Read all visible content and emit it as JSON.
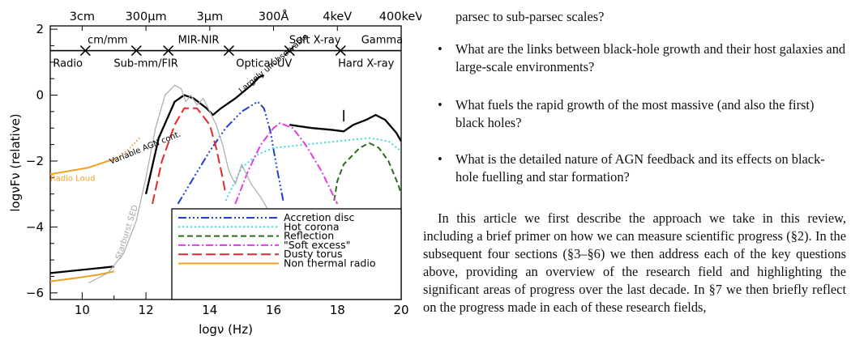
{
  "figure": {
    "chart_data": {
      "type": "line",
      "xlabel": "logν (Hz)",
      "ylabel": "logνFν (relative)",
      "xlim": [
        9,
        20
      ],
      "ylim": [
        -6.2,
        2.1
      ],
      "x_ticks": [
        10,
        12,
        14,
        16,
        18,
        20
      ],
      "y_ticks": [
        2,
        0,
        -2,
        -4,
        -6
      ],
      "top_axis_labels": [
        {
          "label": "3cm",
          "x": 10
        },
        {
          "label": "300μm",
          "x": 12
        },
        {
          "label": "3μm",
          "x": 14
        },
        {
          "label": "300Å",
          "x": 16
        },
        {
          "label": "4keV",
          "x": 18
        },
        {
          "label": "400keV",
          "x": 20
        }
      ],
      "bands_upper": [
        {
          "label": "cm/mm",
          "from": 9.9,
          "to": 11.7
        },
        {
          "label": "MIR-NIR",
          "from": 12.7,
          "to": 14.6
        },
        {
          "label": "Soft X-ray",
          "from": 16.5,
          "to": 18.1
        },
        {
          "label": "Gamma",
          "from": 18.8,
          "to": 20
        }
      ],
      "bands_lower": [
        {
          "label": "Radio",
          "from": 9,
          "to": 10.1
        },
        {
          "label": "Sub-mm/FIR",
          "from": 10.8,
          "to": 13.2
        },
        {
          "label": "Optical-UV",
          "from": 14.5,
          "to": 16.9
        },
        {
          "label": "Hard X-ray",
          "from": 17.8,
          "to": 20
        }
      ],
      "series": [
        {
          "name": "Accretion disc",
          "color": "#1f3fd1",
          "dash": "10 3 2 3 2 3 2 3",
          "points": [
            [
              13.0,
              -3.3
            ],
            [
              13.5,
              -2.5
            ],
            [
              14.0,
              -1.7
            ],
            [
              14.5,
              -1.0
            ],
            [
              15.0,
              -0.5
            ],
            [
              15.5,
              -0.2
            ],
            [
              15.7,
              -0.4
            ],
            [
              15.9,
              -1.1
            ],
            [
              16.1,
              -2.2
            ],
            [
              16.3,
              -3.2
            ]
          ]
        },
        {
          "name": "Hot corona",
          "color": "#3fd9e0",
          "dash": "2 3",
          "points": [
            [
              14.5,
              -3.2
            ],
            [
              15.0,
              -2.2
            ],
            [
              15.5,
              -1.8
            ],
            [
              16.0,
              -1.6
            ],
            [
              17.0,
              -1.5
            ],
            [
              18.0,
              -1.4
            ],
            [
              19.0,
              -1.3
            ],
            [
              19.6,
              -1.4
            ],
            [
              20.0,
              -1.7
            ]
          ]
        },
        {
          "name": "Reflection",
          "color": "#2d6a1f",
          "dash": "7 4",
          "points": [
            [
              17.9,
              -3.2
            ],
            [
              18.0,
              -2.6
            ],
            [
              18.2,
              -2.1
            ],
            [
              18.4,
              -1.9
            ],
            [
              18.7,
              -1.6
            ],
            [
              19.0,
              -1.45
            ],
            [
              19.3,
              -1.6
            ],
            [
              19.6,
              -2.0
            ],
            [
              19.9,
              -2.7
            ],
            [
              20.0,
              -3.0
            ]
          ]
        },
        {
          "name": "\"Soft excess\"",
          "color": "#e03de3",
          "dash": "9 3 2 3",
          "points": [
            [
              14.8,
              -3.3
            ],
            [
              15.2,
              -2.3
            ],
            [
              15.6,
              -1.5
            ],
            [
              16.0,
              -1.0
            ],
            [
              16.2,
              -0.85
            ],
            [
              16.6,
              -1.0
            ],
            [
              17.0,
              -1.5
            ],
            [
              17.5,
              -2.3
            ],
            [
              18.0,
              -3.3
            ]
          ]
        },
        {
          "name": "Dusty torus",
          "color": "#e02a2a",
          "dash": "12 5",
          "points": [
            [
              12.2,
              -3.3
            ],
            [
              12.5,
              -2.0
            ],
            [
              12.9,
              -0.9
            ],
            [
              13.2,
              -0.4
            ],
            [
              13.6,
              -0.4
            ],
            [
              14.0,
              -0.9
            ],
            [
              14.2,
              -1.6
            ],
            [
              14.4,
              -2.5
            ],
            [
              14.5,
              -3.0
            ]
          ]
        },
        {
          "name": "Non thermal radio",
          "color": "#f0a020",
          "dash": "",
          "points": [
            [
              9.0,
              -2.4
            ],
            [
              9.6,
              -2.3
            ],
            [
              10.2,
              -2.2
            ],
            [
              10.8,
              -2.0
            ],
            [
              11.0,
              -1.95
            ]
          ]
        },
        {
          "name": "",
          "color": "#f0a020",
          "dash": "1.5 2.5",
          "points": [
            [
              11.0,
              -1.95
            ],
            [
              11.4,
              -1.7
            ],
            [
              11.8,
              -1.3
            ]
          ]
        },
        {
          "name": "",
          "color": "#f0a020",
          "dash": "",
          "points": [
            [
              9.0,
              -5.65
            ],
            [
              9.8,
              -5.55
            ],
            [
              10.5,
              -5.45
            ],
            [
              11.0,
              -5.35
            ]
          ]
        },
        {
          "name": "",
          "color": "#000000",
          "dash": "",
          "width": 2.3,
          "points": [
            [
              9.0,
              -5.4
            ],
            [
              11.0,
              -5.2
            ]
          ]
        },
        {
          "name": "",
          "color": "#000000",
          "dash": "",
          "width": 2.3,
          "points": [
            [
              12.0,
              -3.0
            ],
            [
              12.4,
              -1.3
            ],
            [
              12.9,
              -0.2
            ],
            [
              13.2,
              0.0
            ],
            [
              13.5,
              -0.1
            ],
            [
              13.9,
              -0.4
            ],
            [
              14.1,
              -0.6
            ],
            [
              14.35,
              -0.4
            ],
            [
              14.8,
              -0.1
            ],
            [
              15.3,
              0.3
            ],
            [
              15.55,
              0.55
            ],
            [
              15.7,
              0.6
            ]
          ]
        },
        {
          "name": "",
          "color": "#000000",
          "dash": "",
          "width": 2.3,
          "points": [
            [
              16.5,
              -0.9
            ],
            [
              17.2,
              -1.0
            ],
            [
              17.8,
              -1.05
            ],
            [
              18.2,
              -1.1
            ],
            [
              18.5,
              -0.9
            ],
            [
              18.9,
              -0.75
            ],
            [
              19.2,
              -0.6
            ],
            [
              19.5,
              -0.75
            ],
            [
              19.85,
              -1.15
            ],
            [
              20.0,
              -1.4
            ]
          ]
        },
        {
          "name": "",
          "color": "#000000",
          "dash": "",
          "width": 1.6,
          "points": [
            [
              18.2,
              -0.8
            ],
            [
              18.2,
              -0.45
            ]
          ]
        },
        {
          "name": "",
          "color": "#b0b0b0",
          "dash": "",
          "width": 1.3,
          "points": [
            [
              10.2,
              -5.7
            ],
            [
              10.8,
              -5.4
            ],
            [
              11.3,
              -4.8
            ],
            [
              11.7,
              -3.8
            ],
            [
              12.0,
              -2.5
            ],
            [
              12.3,
              -1.0
            ],
            [
              12.6,
              0.0
            ],
            [
              12.9,
              0.3
            ],
            [
              13.1,
              0.2
            ],
            [
              13.25,
              -0.2
            ],
            [
              13.4,
              0.0
            ],
            [
              13.6,
              -0.3
            ],
            [
              13.8,
              -0.1
            ],
            [
              14.0,
              -0.5
            ],
            [
              14.2,
              -0.9
            ],
            [
              14.4,
              -1.5
            ],
            [
              14.6,
              -2.3
            ],
            [
              14.8,
              -2.7
            ],
            [
              15.0,
              -2.1
            ],
            [
              15.3,
              -2.7
            ],
            [
              15.6,
              -3.1
            ],
            [
              15.9,
              -3.6
            ],
            [
              16.1,
              -3.7
            ],
            [
              16.3,
              -4.0
            ]
          ]
        }
      ],
      "legend_position": "bottom-right",
      "annotations": [
        {
          "text": "Largely unobservable",
          "x": 15.0,
          "y": 0.05,
          "rotate": -40
        },
        {
          "text": "Variable AGN cont.",
          "x": 10.9,
          "y": -2.1,
          "rotate": -22
        },
        {
          "text": "Radio Loud",
          "x": 9.0,
          "y": -2.6,
          "rotate": 0
        },
        {
          "text": "Starburst SED",
          "x": 11.2,
          "y": -5.0,
          "rotate": -72
        }
      ]
    }
  },
  "text": {
    "top_line": "parsec to sub-parsec scales?",
    "bullets": [
      "What are the links between black-hole growth and their host galaxies and large-scale environments?",
      "What fuels the rapid growth of the most massive (and also the first) black holes?",
      "What is the detailed nature of AGN feedback and its effects on black-hole fuelling and star formation?"
    ],
    "bullet_symbol": "•",
    "paragraph": "In this article we first describe the approach we take in this review, including a brief primer on how we can measure scientific progress (§2). In the subsequent four sections (§3–§6) we then address each of the key questions above, providing an overview of the research field and highlighting the significant areas of progress over the last decade. In §7 we then briefly reflect on the progress made in each of these research fields,"
  }
}
